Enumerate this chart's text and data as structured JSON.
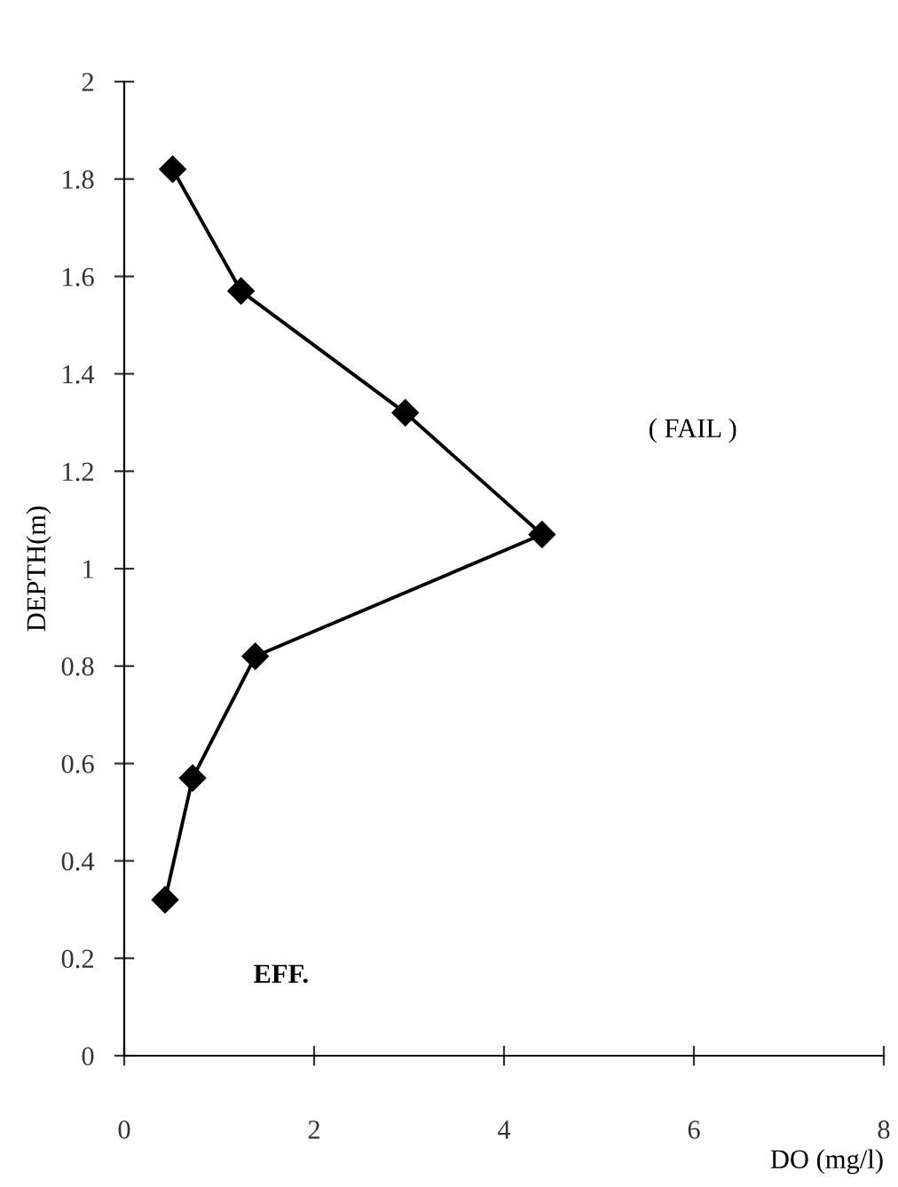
{
  "chart_data": {
    "type": "line",
    "xlabel": "DO (mg/l)",
    "ylabel": "DEPTH(m)",
    "annotations": [
      "( FAIL )",
      "EFF."
    ],
    "series": [
      {
        "color": "#000000",
        "x": [
          0.51,
          1.23,
          2.96,
          4.4,
          1.38,
          0.72,
          0.43
        ],
        "values": [
          1.82,
          1.57,
          1.32,
          1.07,
          0.82,
          0.57,
          0.32
        ]
      }
    ],
    "xlim": [
      0,
      8
    ],
    "xticks": [
      0,
      2,
      4,
      6,
      8
    ],
    "ylim": [
      0,
      2
    ],
    "yticks": [
      0,
      0.2,
      0.4,
      0.6,
      0.8,
      1,
      1.2,
      1.4,
      1.6,
      1.8,
      2
    ],
    "marker": "diamond",
    "line_style": "solid",
    "grid": false,
    "legend": false
  }
}
